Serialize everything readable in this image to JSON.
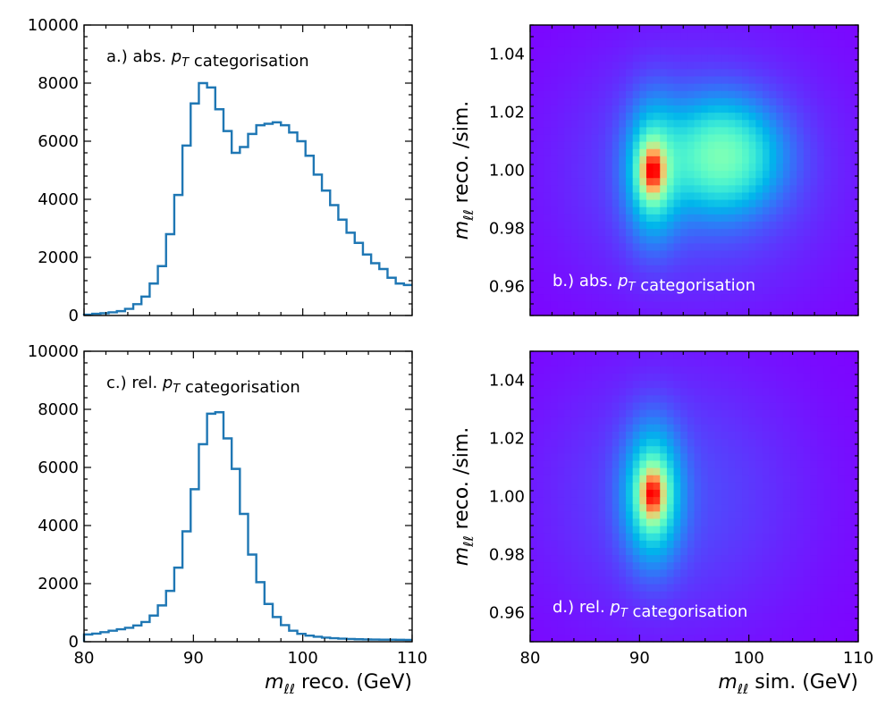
{
  "chart_data": [
    {
      "id": "a",
      "type": "histogram",
      "annotation": "a.) abs. p_T categorisation",
      "xlim": [
        80,
        110
      ],
      "ylim": [
        0,
        10000
      ],
      "bin_width": 0.75,
      "xlabel": "",
      "ylabel": "",
      "xticks": [],
      "yticks": [
        0,
        2000,
        4000,
        6000,
        8000,
        10000
      ],
      "values": [
        30,
        60,
        80,
        110,
        150,
        230,
        390,
        650,
        1100,
        1700,
        2800,
        4150,
        5850,
        7300,
        8000,
        7850,
        7100,
        6350,
        5600,
        5800,
        6250,
        6550,
        6600,
        6650,
        6550,
        6300,
        6000,
        5500,
        4850,
        4300,
        3800,
        3300,
        2850,
        2500,
        2100,
        1800,
        1600,
        1300,
        1100,
        1050
      ]
    },
    {
      "id": "b",
      "type": "heatmap",
      "annotation": "b.) abs. p_T categorisation",
      "xlim": [
        80,
        110
      ],
      "ylim": [
        0.95,
        1.05
      ],
      "xlabel": "",
      "ylabel": "m_ℓℓ reco. /sim.",
      "xticks": [],
      "yticks": [
        "0.96",
        "0.98",
        "1.00",
        "1.02",
        "1.04"
      ],
      "colormap": "rainbow",
      "peaks": [
        {
          "x": 91.2,
          "y": 1.0,
          "sx": 0.75,
          "sy": 0.006,
          "amp": 1.0
        },
        {
          "x": 91.2,
          "y": 1.0,
          "sx": 1.6,
          "sy": 0.015,
          "amp": 0.38
        },
        {
          "x": 97.5,
          "y": 1.005,
          "sx": 3.3,
          "sy": 0.012,
          "amp": 0.5
        },
        {
          "x": 95.5,
          "y": 1.0,
          "sx": 8.0,
          "sy": 0.028,
          "amp": 0.1
        }
      ]
    },
    {
      "id": "c",
      "type": "histogram",
      "annotation": "c.) rel. p_T categorisation",
      "xlim": [
        80,
        110
      ],
      "ylim": [
        0,
        10000
      ],
      "bin_width": 0.75,
      "xlabel": "m_ℓℓ reco. (GeV)",
      "ylabel": "",
      "xticks": [
        "80",
        "90",
        "100",
        "110"
      ],
      "yticks": [
        0,
        2000,
        4000,
        6000,
        8000,
        10000
      ],
      "values": [
        250,
        280,
        330,
        380,
        430,
        480,
        560,
        680,
        900,
        1250,
        1750,
        2550,
        3800,
        5250,
        6800,
        7850,
        7900,
        7000,
        5950,
        4400,
        3000,
        2050,
        1300,
        850,
        570,
        380,
        270,
        210,
        170,
        140,
        120,
        105,
        95,
        85,
        80,
        75,
        72,
        70,
        68,
        65
      ]
    },
    {
      "id": "d",
      "type": "heatmap",
      "annotation": "d.) rel. p_T categorisation",
      "xlim": [
        80,
        110
      ],
      "ylim": [
        0.95,
        1.05
      ],
      "xlabel": "m_ℓℓ sim. (GeV)",
      "ylabel": "m_ℓℓ reco. /sim.",
      "xticks": [
        "80",
        "90",
        "100",
        "110"
      ],
      "yticks": [
        "0.96",
        "0.98",
        "1.00",
        "1.02",
        "1.04"
      ],
      "colormap": "rainbow",
      "peaks": [
        {
          "x": 91.2,
          "y": 1.001,
          "sx": 0.75,
          "sy": 0.006,
          "amp": 1.0
        },
        {
          "x": 91.2,
          "y": 1.001,
          "sx": 1.7,
          "sy": 0.015,
          "amp": 0.45
        },
        {
          "x": 93.0,
          "y": 1.0,
          "sx": 8.0,
          "sy": 0.03,
          "amp": 0.08
        }
      ]
    }
  ]
}
